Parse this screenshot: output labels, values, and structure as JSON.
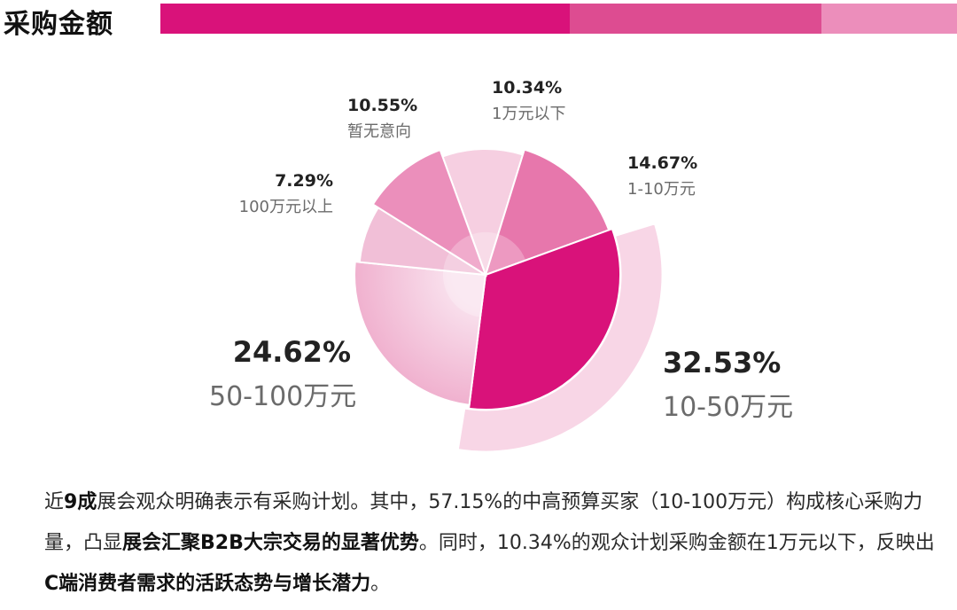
{
  "header": {
    "title": "采购金额"
  },
  "colors": {
    "bar_1": "#d9127a",
    "bar_2": "#dd4c91",
    "bar_3": "#ec8ebb"
  },
  "chart_data": {
    "type": "pie",
    "title": "",
    "slices": [
      {
        "label": "1万元以下",
        "value": 10.34,
        "value_label": "10.34%",
        "color": "#f6cfe1"
      },
      {
        "label": "1-10万元",
        "value": 14.67,
        "value_label": "14.67%",
        "color": "#e777ac"
      },
      {
        "label": "10-50万元",
        "value": 32.53,
        "value_label": "32.53%",
        "color": "#d9127a"
      },
      {
        "label": "50-100万元",
        "value": 24.62,
        "value_label": "24.62%",
        "color": "#f3b7d3"
      },
      {
        "label": "100万元以上",
        "value": 7.29,
        "value_label": "7.29%",
        "color": "#f1bfd7"
      },
      {
        "label": "暂无意向",
        "value": 10.55,
        "value_label": "10.55%",
        "color": "#eb8fbb"
      }
    ]
  },
  "summary": {
    "p1": "近",
    "b1": "9成",
    "p2": "展会观众明确表示有采购计划。其中，57.15%的中高预算买家（10-100万元）构成核心采购力量，凸显",
    "b2": "展会汇聚B2B大宗交易的显著优势",
    "p3": "。同时，10.34%的观众计划采购金额在1万元以下，反映出",
    "b3": "C端消费者需求的活跃态势与增长潜力",
    "p4": "。"
  }
}
